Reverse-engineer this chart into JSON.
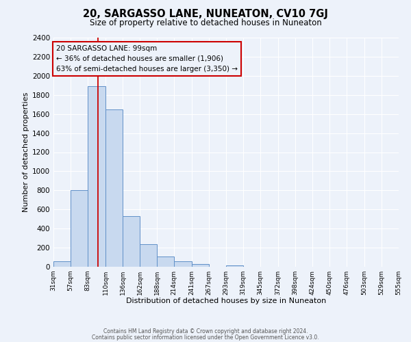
{
  "title": "20, SARGASSO LANE, NUNEATON, CV10 7GJ",
  "subtitle": "Size of property relative to detached houses in Nuneaton",
  "xlabel": "Distribution of detached houses by size in Nuneaton",
  "ylabel": "Number of detached properties",
  "bar_color": "#c8d9ef",
  "bar_edge_color": "#6090c8",
  "background_color": "#edf2fa",
  "grid_color": "#ffffff",
  "annotation_box_edge": "#cc0000",
  "vline_color": "#cc0000",
  "annotation_title": "20 SARGASSO LANE: 99sqm",
  "annotation_line1": "← 36% of detached houses are smaller (1,906)",
  "annotation_line2": "63% of semi-detached houses are larger (3,350) →",
  "vline_x": 99,
  "bin_edges": [
    31,
    57,
    83,
    110,
    136,
    162,
    188,
    214,
    241,
    267,
    293,
    319,
    345,
    372,
    398,
    424,
    450,
    476,
    503,
    529,
    555
  ],
  "bar_heights": [
    55,
    800,
    1890,
    1645,
    530,
    240,
    110,
    55,
    30,
    0,
    15,
    0,
    0,
    0,
    0,
    0,
    0,
    0,
    0,
    0
  ],
  "ylim": [
    0,
    2400
  ],
  "yticks": [
    0,
    200,
    400,
    600,
    800,
    1000,
    1200,
    1400,
    1600,
    1800,
    2000,
    2200,
    2400
  ],
  "footer_line1": "Contains HM Land Registry data © Crown copyright and database right 2024.",
  "footer_line2": "Contains public sector information licensed under the Open Government Licence v3.0."
}
